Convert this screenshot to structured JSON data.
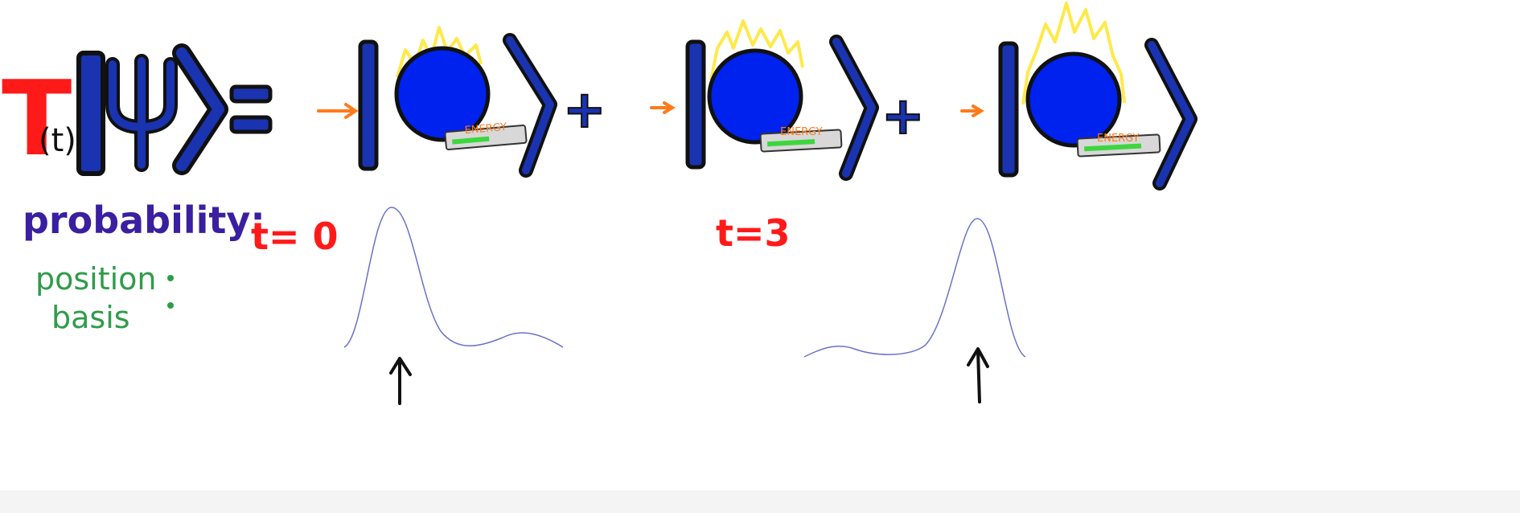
{
  "equation": {
    "operator_letter": "T",
    "operator_arg": "(t)",
    "psi_symbol": "Ψ",
    "equals": "=",
    "plus": "+"
  },
  "kets": [
    {
      "energy_label": "ENERGY",
      "energy_fill": 0.55
    },
    {
      "energy_label": "ENERGY",
      "energy_fill": 0.7
    },
    {
      "energy_label": "ENERGY",
      "energy_fill": 0.85
    }
  ],
  "probability": {
    "title": "probability:",
    "basis_line1": "position",
    "basis_line2": "basis"
  },
  "time_labels": [
    "t= 0",
    "t=3"
  ],
  "colors": {
    "operator_red": "#ff1a1a",
    "ket_blue": "#1a33b0",
    "ball_blue": "#0022ee",
    "flame_yellow": "#ffe94a",
    "arrow_orange": "#ff7a1a",
    "purple": "#3a1fa0",
    "green": "#2f9c4a",
    "energy_green": "#3ed63e",
    "curve": "#6a72c8"
  }
}
